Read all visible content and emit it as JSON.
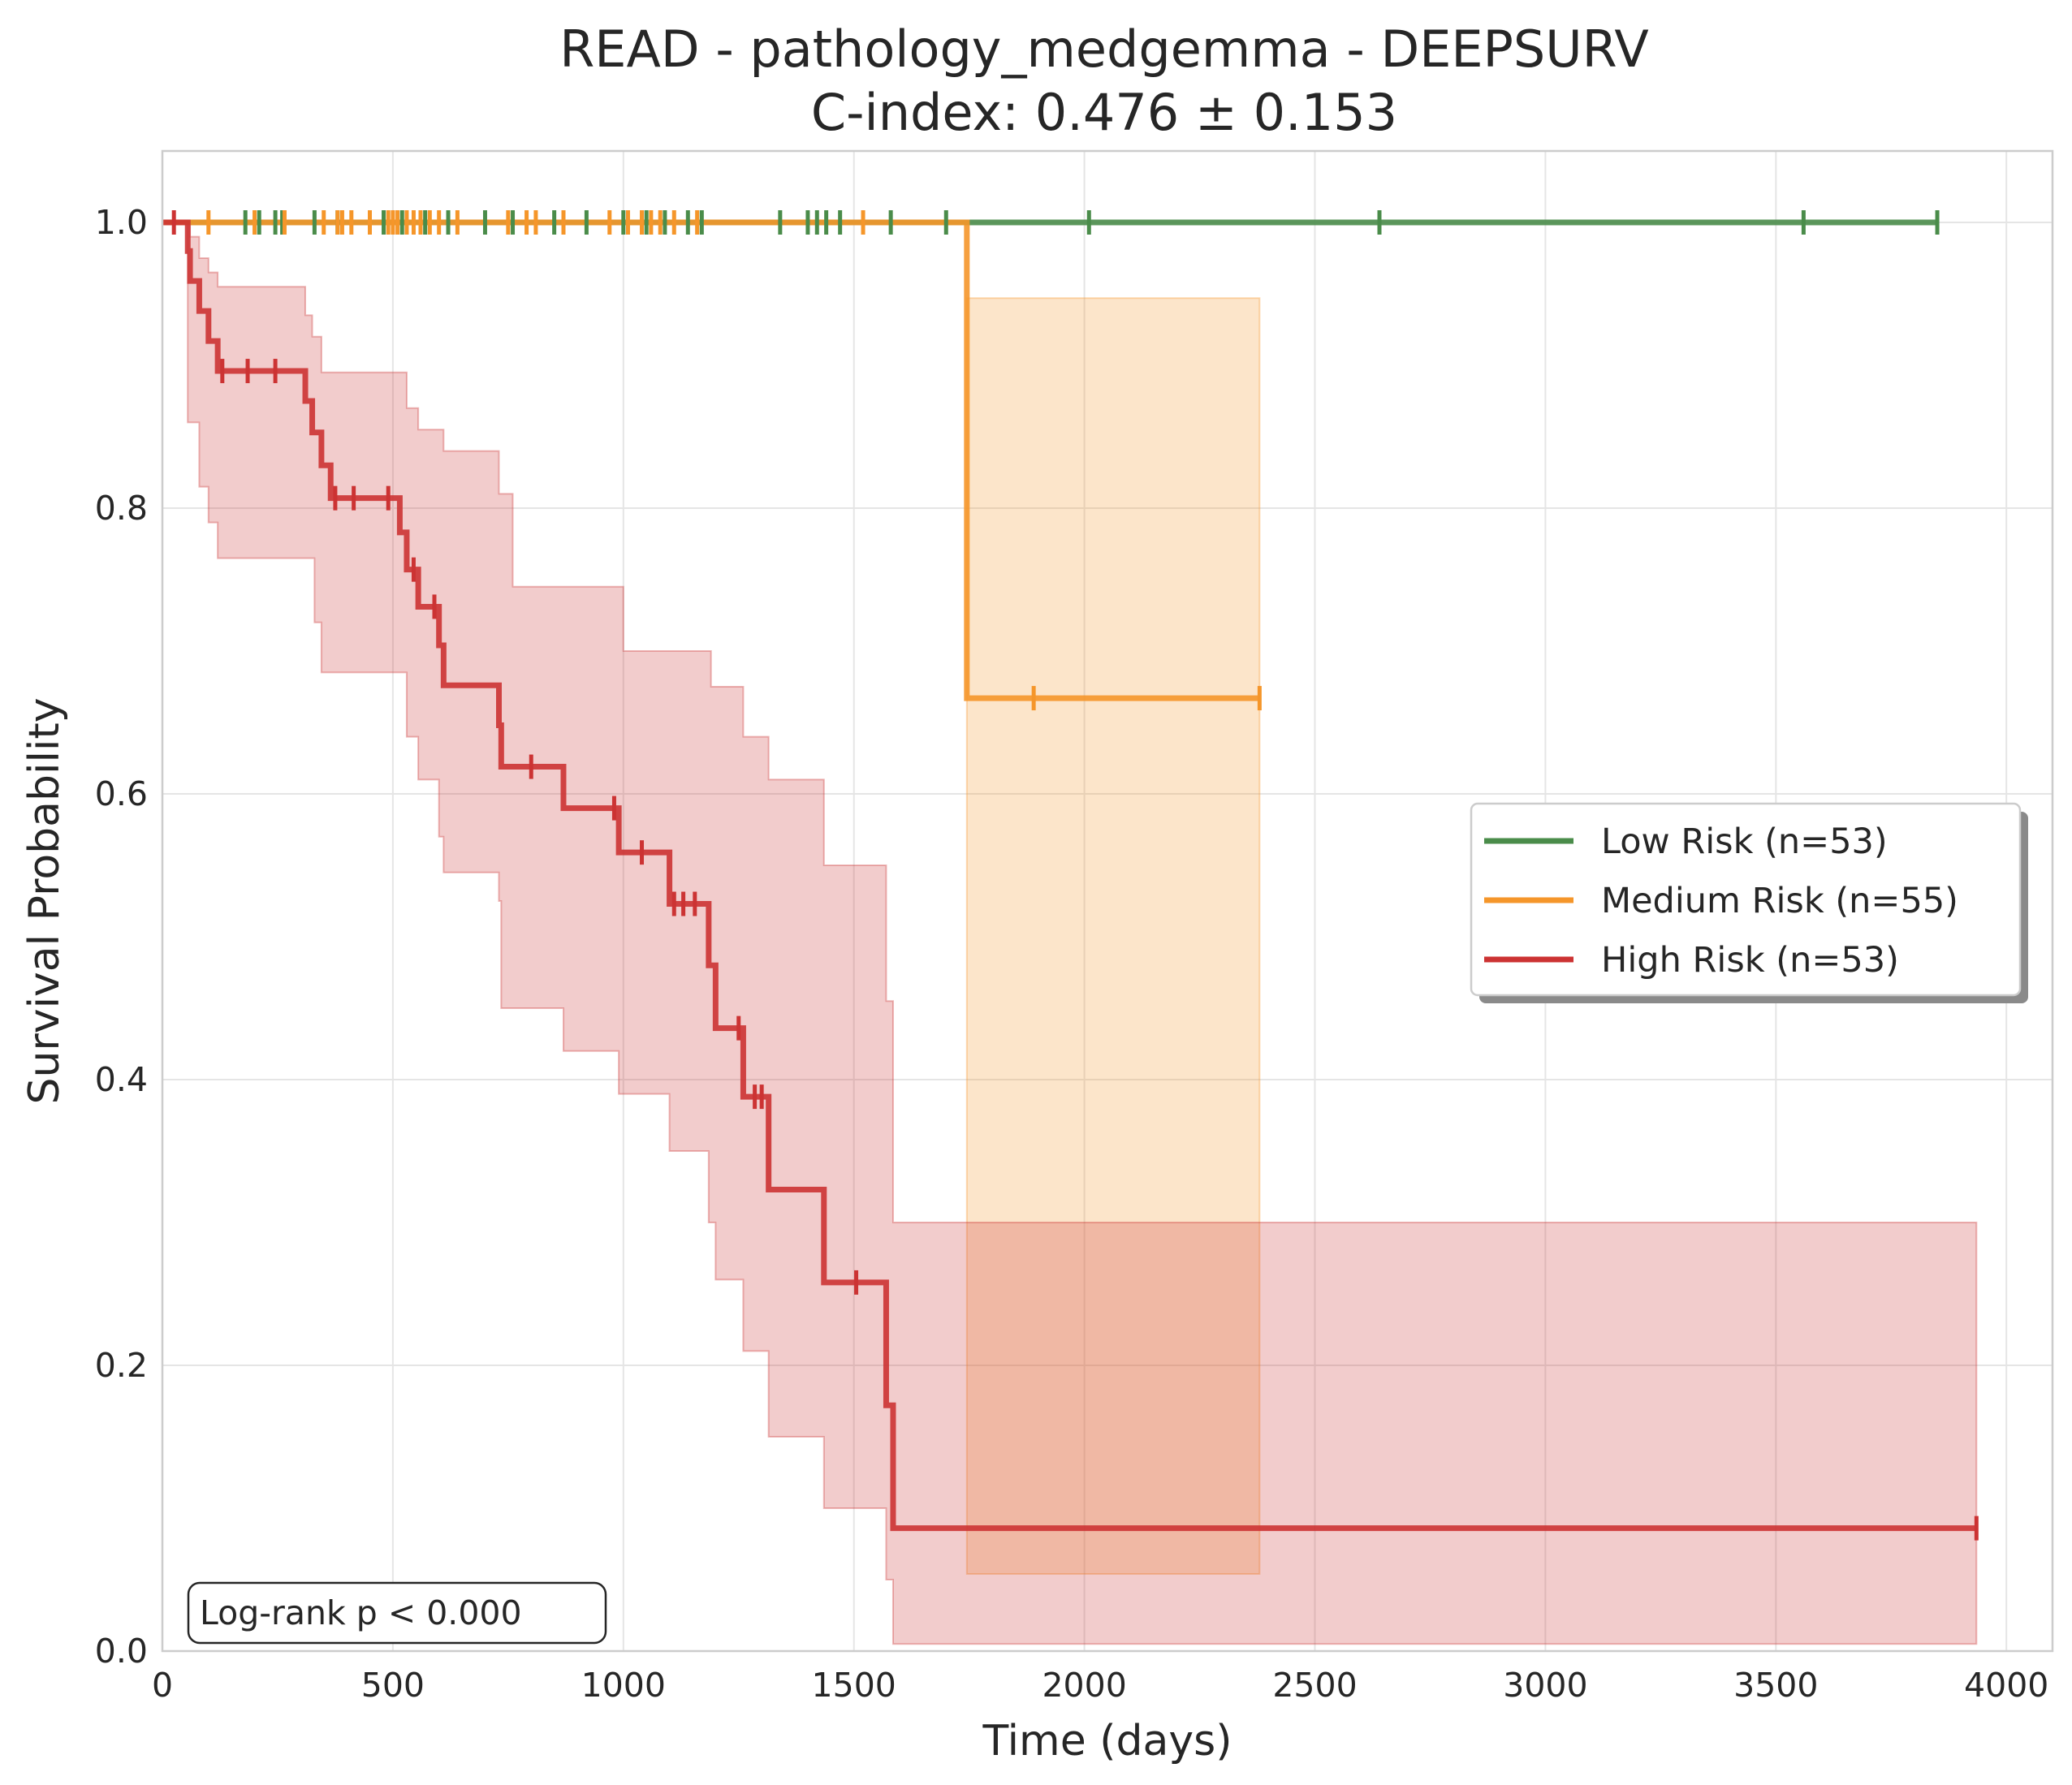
{
  "chart_data": {
    "type": "line",
    "subtype": "kaplan-meier",
    "title": "READ - pathology_medgemma - DEEPSURV",
    "subtitle": "C-index: 0.476 ± 0.153",
    "xlabel": "Time (days)",
    "ylabel": "Survival Probability",
    "xlim": [
      0,
      4100
    ],
    "ylim": [
      0,
      1.05
    ],
    "x_ticks": [
      0,
      500,
      1000,
      1500,
      2000,
      2500,
      3000,
      3500,
      4000
    ],
    "x_tick_labels": [
      "0",
      "500",
      "1000",
      "1500",
      "2000",
      "2500",
      "3000",
      "3500",
      "4000"
    ],
    "y_ticks": [
      0,
      0.2,
      0.4,
      0.6,
      0.8,
      1.0
    ],
    "y_tick_labels": [
      "0.0",
      "0.2",
      "0.4",
      "0.6",
      "0.8",
      "1.0"
    ],
    "grid": true,
    "legend_position": "center-right",
    "annotation": "Log-rank p < 0.000",
    "series": [
      {
        "name": "Low Risk (n=53)",
        "color": "#4a8c4a",
        "steps": [
          [
            0,
            1.0
          ],
          [
            3850,
            1.0
          ]
        ],
        "ci_upper": [],
        "ci_lower": [],
        "censored": [
          [
            180,
            1.0
          ],
          [
            210,
            1.0
          ],
          [
            245,
            1.0
          ],
          [
            260,
            1.0
          ],
          [
            330,
            1.0
          ],
          [
            380,
            1.0
          ],
          [
            480,
            1.0
          ],
          [
            520,
            1.0
          ],
          [
            570,
            1.0
          ],
          [
            620,
            1.0
          ],
          [
            700,
            1.0
          ],
          [
            760,
            1.0
          ],
          [
            850,
            1.0
          ],
          [
            920,
            1.0
          ],
          [
            1000,
            1.0
          ],
          [
            1050,
            1.0
          ],
          [
            1090,
            1.0
          ],
          [
            1140,
            1.0
          ],
          [
            1170,
            1.0
          ],
          [
            1340,
            1.0
          ],
          [
            1400,
            1.0
          ],
          [
            1420,
            1.0
          ],
          [
            1440,
            1.0
          ],
          [
            1470,
            1.0
          ],
          [
            1580,
            1.0
          ],
          [
            1700,
            1.0
          ],
          [
            2010,
            1.0
          ],
          [
            2640,
            1.0
          ],
          [
            3560,
            1.0
          ],
          [
            3850,
            1.0
          ]
        ]
      },
      {
        "name": "Medium Risk (n=55)",
        "color": "#f5962a",
        "steps": [
          [
            0,
            1.0
          ],
          [
            1745,
            0.667
          ],
          [
            2380,
            0.667
          ]
        ],
        "ci_upper": [
          [
            1745,
            0.947
          ],
          [
            2380,
            0.947
          ]
        ],
        "ci_lower": [
          [
            1745,
            0.054
          ],
          [
            2380,
            0.054
          ]
        ],
        "censored": [
          [
            100,
            1.0
          ],
          [
            200,
            1.0
          ],
          [
            265,
            1.0
          ],
          [
            350,
            1.0
          ],
          [
            380,
            1.0
          ],
          [
            390,
            1.0
          ],
          [
            410,
            1.0
          ],
          [
            450,
            1.0
          ],
          [
            490,
            1.0
          ],
          [
            500,
            1.0
          ],
          [
            510,
            1.0
          ],
          [
            530,
            1.0
          ],
          [
            545,
            1.0
          ],
          [
            560,
            1.0
          ],
          [
            580,
            1.0
          ],
          [
            600,
            1.0
          ],
          [
            640,
            1.0
          ],
          [
            750,
            1.0
          ],
          [
            790,
            1.0
          ],
          [
            810,
            1.0
          ],
          [
            870,
            1.0
          ],
          [
            970,
            1.0
          ],
          [
            1010,
            1.0
          ],
          [
            1040,
            1.0
          ],
          [
            1060,
            1.0
          ],
          [
            1080,
            1.0
          ],
          [
            1110,
            1.0
          ],
          [
            1160,
            1.0
          ],
          [
            1520,
            1.0
          ],
          [
            1890,
            0.667
          ],
          [
            2380,
            0.667
          ]
        ]
      },
      {
        "name": "High Risk (n=53)",
        "color": "#cc3333",
        "steps": [
          [
            0,
            1.0
          ],
          [
            55,
            0.98
          ],
          [
            60,
            0.959
          ],
          [
            80,
            0.938
          ],
          [
            100,
            0.917
          ],
          [
            120,
            0.896
          ],
          [
            310,
            0.875
          ],
          [
            325,
            0.853
          ],
          [
            345,
            0.83
          ],
          [
            365,
            0.807
          ],
          [
            515,
            0.783
          ],
          [
            530,
            0.757
          ],
          [
            555,
            0.731
          ],
          [
            600,
            0.704
          ],
          [
            610,
            0.676
          ],
          [
            730,
            0.648
          ],
          [
            735,
            0.619
          ],
          [
            870,
            0.59
          ],
          [
            990,
            0.559
          ],
          [
            1100,
            0.523
          ],
          [
            1185,
            0.48
          ],
          [
            1200,
            0.436
          ],
          [
            1260,
            0.388
          ],
          [
            1315,
            0.323
          ],
          [
            1435,
            0.258
          ],
          [
            1570,
            0.172
          ],
          [
            1585,
            0.086
          ],
          [
            3935,
            0.086
          ]
        ],
        "ci_upper": [
          [
            0,
            1.0
          ],
          [
            55,
            1.0
          ],
          [
            60,
            0.99
          ],
          [
            80,
            0.975
          ],
          [
            100,
            0.965
          ],
          [
            120,
            0.955
          ],
          [
            300,
            0.955
          ],
          [
            310,
            0.935
          ],
          [
            325,
            0.92
          ],
          [
            345,
            0.895
          ],
          [
            515,
            0.895
          ],
          [
            530,
            0.87
          ],
          [
            555,
            0.855
          ],
          [
            610,
            0.84
          ],
          [
            730,
            0.81
          ],
          [
            760,
            0.745
          ],
          [
            1000,
            0.7
          ],
          [
            1190,
            0.675
          ],
          [
            1260,
            0.64
          ],
          [
            1315,
            0.61
          ],
          [
            1435,
            0.55
          ],
          [
            1570,
            0.455
          ],
          [
            1585,
            0.3
          ],
          [
            3935,
            0.3
          ]
        ],
        "ci_lower": [
          [
            0,
            1.0
          ],
          [
            55,
            0.86
          ],
          [
            80,
            0.815
          ],
          [
            100,
            0.79
          ],
          [
            120,
            0.765
          ],
          [
            300,
            0.765
          ],
          [
            330,
            0.72
          ],
          [
            345,
            0.685
          ],
          [
            515,
            0.685
          ],
          [
            530,
            0.64
          ],
          [
            555,
            0.61
          ],
          [
            600,
            0.57
          ],
          [
            610,
            0.545
          ],
          [
            730,
            0.525
          ],
          [
            735,
            0.45
          ],
          [
            870,
            0.42
          ],
          [
            990,
            0.39
          ],
          [
            1100,
            0.35
          ],
          [
            1185,
            0.3
          ],
          [
            1200,
            0.26
          ],
          [
            1260,
            0.21
          ],
          [
            1315,
            0.15
          ],
          [
            1435,
            0.1
          ],
          [
            1570,
            0.05
          ],
          [
            1585,
            0.005
          ],
          [
            3935,
            0.005
          ]
        ],
        "censored": [
          [
            25,
            1.0
          ],
          [
            130,
            0.896
          ],
          [
            185,
            0.896
          ],
          [
            245,
            0.896
          ],
          [
            375,
            0.807
          ],
          [
            415,
            0.807
          ],
          [
            490,
            0.807
          ],
          [
            545,
            0.757
          ],
          [
            590,
            0.731
          ],
          [
            800,
            0.619
          ],
          [
            980,
            0.59
          ],
          [
            1040,
            0.559
          ],
          [
            1110,
            0.523
          ],
          [
            1130,
            0.523
          ],
          [
            1155,
            0.523
          ],
          [
            1250,
            0.436
          ],
          [
            1285,
            0.388
          ],
          [
            1300,
            0.388
          ],
          [
            1505,
            0.258
          ],
          [
            3935,
            0.086
          ]
        ]
      }
    ]
  }
}
